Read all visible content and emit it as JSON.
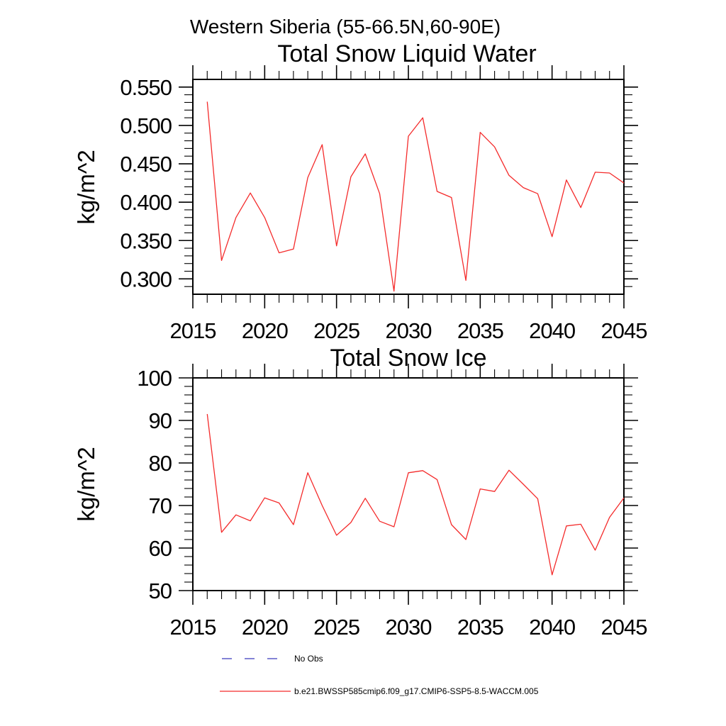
{
  "figure": {
    "region_title": "Western Siberia (55-66.5N,60-90E)"
  },
  "colors": {
    "model_line": "#f42b2b",
    "no_obs_line": "#5a5ac8",
    "axis": "#000000",
    "background": "#ffffff"
  },
  "legend": {
    "items": [
      {
        "label": "No Obs",
        "line_style": "dashed",
        "color": "#5a5ac8"
      },
      {
        "label": "b.e21.BWSSP585cmip6.f09_g17.CMIP6-SSP5-8.5-WACCM.005",
        "line_style": "solid",
        "color": "#f42b2b"
      }
    ]
  },
  "chart_data": [
    {
      "type": "line",
      "title": "Total Snow Liquid Water",
      "ylabel": "kg/m^2",
      "xlabel": "",
      "grid": false,
      "xlim": [
        2015,
        2045
      ],
      "ylim": [
        0.28,
        0.56
      ],
      "xticks": [
        2015,
        2020,
        2025,
        2030,
        2035,
        2040,
        2045
      ],
      "xtick_minor_step": 1,
      "yticks": [
        0.3,
        0.35,
        0.4,
        0.45,
        0.5,
        0.55
      ],
      "ytick_labels": [
        "0.300",
        "0.350",
        "0.400",
        "0.450",
        "0.500",
        "0.550"
      ],
      "ytick_minor_step": 0.01,
      "line_color": "#f42b2b",
      "x": [
        2016,
        2017,
        2018,
        2019,
        2020,
        2021,
        2022,
        2023,
        2024,
        2025,
        2026,
        2027,
        2028,
        2029,
        2030,
        2031,
        2032,
        2033,
        2034,
        2035,
        2036,
        2037,
        2038,
        2039,
        2040,
        2041,
        2042,
        2043,
        2044,
        2045
      ],
      "series": [
        {
          "name": "b.e21.BWSSP585cmip6.f09_g17.CMIP6-SSP5-8.5-WACCM.005",
          "values": [
            0.531,
            0.324,
            0.38,
            0.412,
            0.38,
            0.334,
            0.339,
            0.432,
            0.475,
            0.343,
            0.433,
            0.463,
            0.411,
            0.284,
            0.486,
            0.51,
            0.414,
            0.406,
            0.298,
            0.491,
            0.472,
            0.435,
            0.419,
            0.411,
            0.355,
            0.429,
            0.393,
            0.439,
            0.438,
            0.425
          ]
        }
      ]
    },
    {
      "type": "line",
      "title": "Total Snow Ice",
      "ylabel": "kg/m^2",
      "xlabel": "",
      "grid": false,
      "xlim": [
        2015,
        2045
      ],
      "ylim": [
        50,
        100
      ],
      "xticks": [
        2015,
        2020,
        2025,
        2030,
        2035,
        2040,
        2045
      ],
      "xtick_minor_step": 1,
      "yticks": [
        50,
        60,
        70,
        80,
        90,
        100
      ],
      "ytick_labels": [
        "50",
        "60",
        "70",
        "80",
        "90",
        "100"
      ],
      "ytick_minor_step": 2,
      "line_color": "#f42b2b",
      "x": [
        2016,
        2017,
        2018,
        2019,
        2020,
        2021,
        2022,
        2023,
        2024,
        2025,
        2026,
        2027,
        2028,
        2029,
        2030,
        2031,
        2032,
        2033,
        2034,
        2035,
        2036,
        2037,
        2038,
        2039,
        2040,
        2041,
        2042,
        2043,
        2044,
        2045
      ],
      "series": [
        {
          "name": "b.e21.BWSSP585cmip6.f09_g17.CMIP6-SSP5-8.5-WACCM.005",
          "values": [
            91.5,
            63.7,
            67.8,
            66.4,
            71.8,
            70.6,
            65.5,
            77.7,
            70.0,
            63.0,
            66.0,
            71.7,
            66.3,
            65.0,
            77.7,
            78.2,
            76.1,
            65.5,
            62.0,
            73.9,
            73.3,
            78.3,
            75.0,
            71.6,
            53.7,
            65.2,
            65.6,
            59.5,
            67.2,
            71.8
          ]
        }
      ]
    }
  ]
}
